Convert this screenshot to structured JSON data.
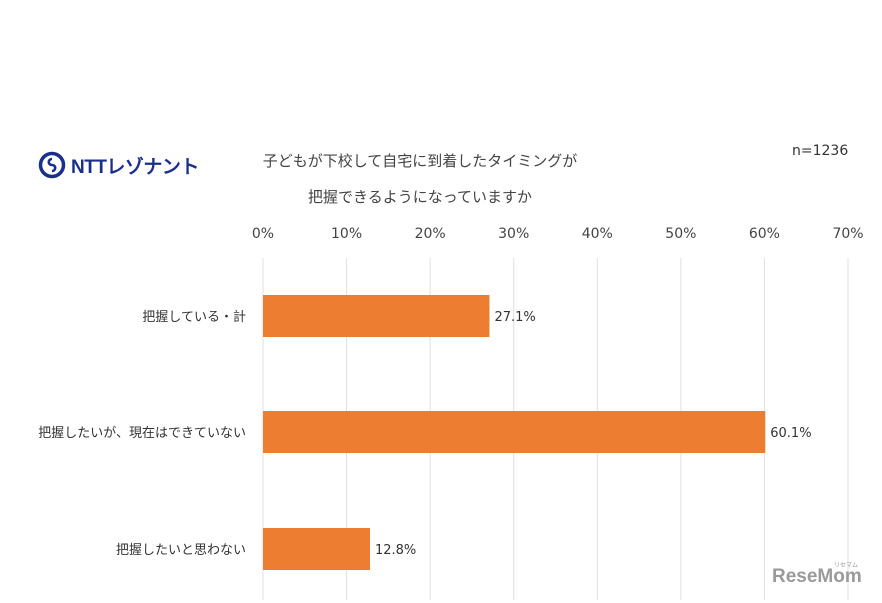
{
  "header": {
    "logo_text": "NTTレゾナント",
    "title_line1": "子どもが下校して自宅に到着したタイミングが",
    "title_line2": "把握できるようになっていますか",
    "sample_size": "n=1236"
  },
  "watermark": {
    "text": "ReseMom",
    "sub": "リセマム"
  },
  "chart_data": {
    "type": "bar",
    "orientation": "horizontal",
    "categories": [
      "把握している・計",
      "把握したいが、現在はできていない",
      "把握したいと思わない"
    ],
    "values": [
      27.1,
      60.1,
      12.8
    ],
    "value_labels": [
      "27.1%",
      "60.1%",
      "12.8%"
    ],
    "ticks": [
      "0%",
      "10%",
      "20%",
      "30%",
      "40%",
      "50%",
      "60%",
      "70%"
    ],
    "xlim": [
      0,
      70
    ],
    "axis_position": "top",
    "grid": true,
    "bar_color": "#ed7d31",
    "grid_color": "#e0e0e0",
    "title": "子どもが下校して自宅に到着したタイミングが把握できるようになっていますか"
  }
}
